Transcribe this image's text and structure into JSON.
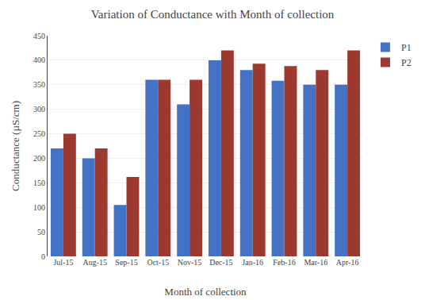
{
  "chart_data": {
    "type": "bar",
    "title": "Variation of Conductance with Month of collection",
    "xlabel": "Month of collection",
    "ylabel": "Conductance (µS/cm)",
    "categories": [
      "Jul-15",
      "Aug-15",
      "Sep-15",
      "Oct-15",
      "Nov-15",
      "Dec-15",
      "Jan-16",
      "Feb-16",
      "Mar-16",
      "Apr-16"
    ],
    "series": [
      {
        "name": "P1",
        "color": "#4472C4",
        "values": [
          220,
          200,
          105,
          360,
          310,
          400,
          380,
          358,
          350,
          350
        ]
      },
      {
        "name": "P2",
        "color": "#9C3A30",
        "values": [
          250,
          220,
          162,
          360,
          360,
          420,
          393,
          388,
          380,
          420
        ]
      }
    ],
    "ylim": [
      0,
      450
    ],
    "yticks": [
      0,
      50,
      100,
      150,
      200,
      250,
      300,
      350,
      400,
      450
    ],
    "grid": true,
    "legend": "upper right"
  }
}
